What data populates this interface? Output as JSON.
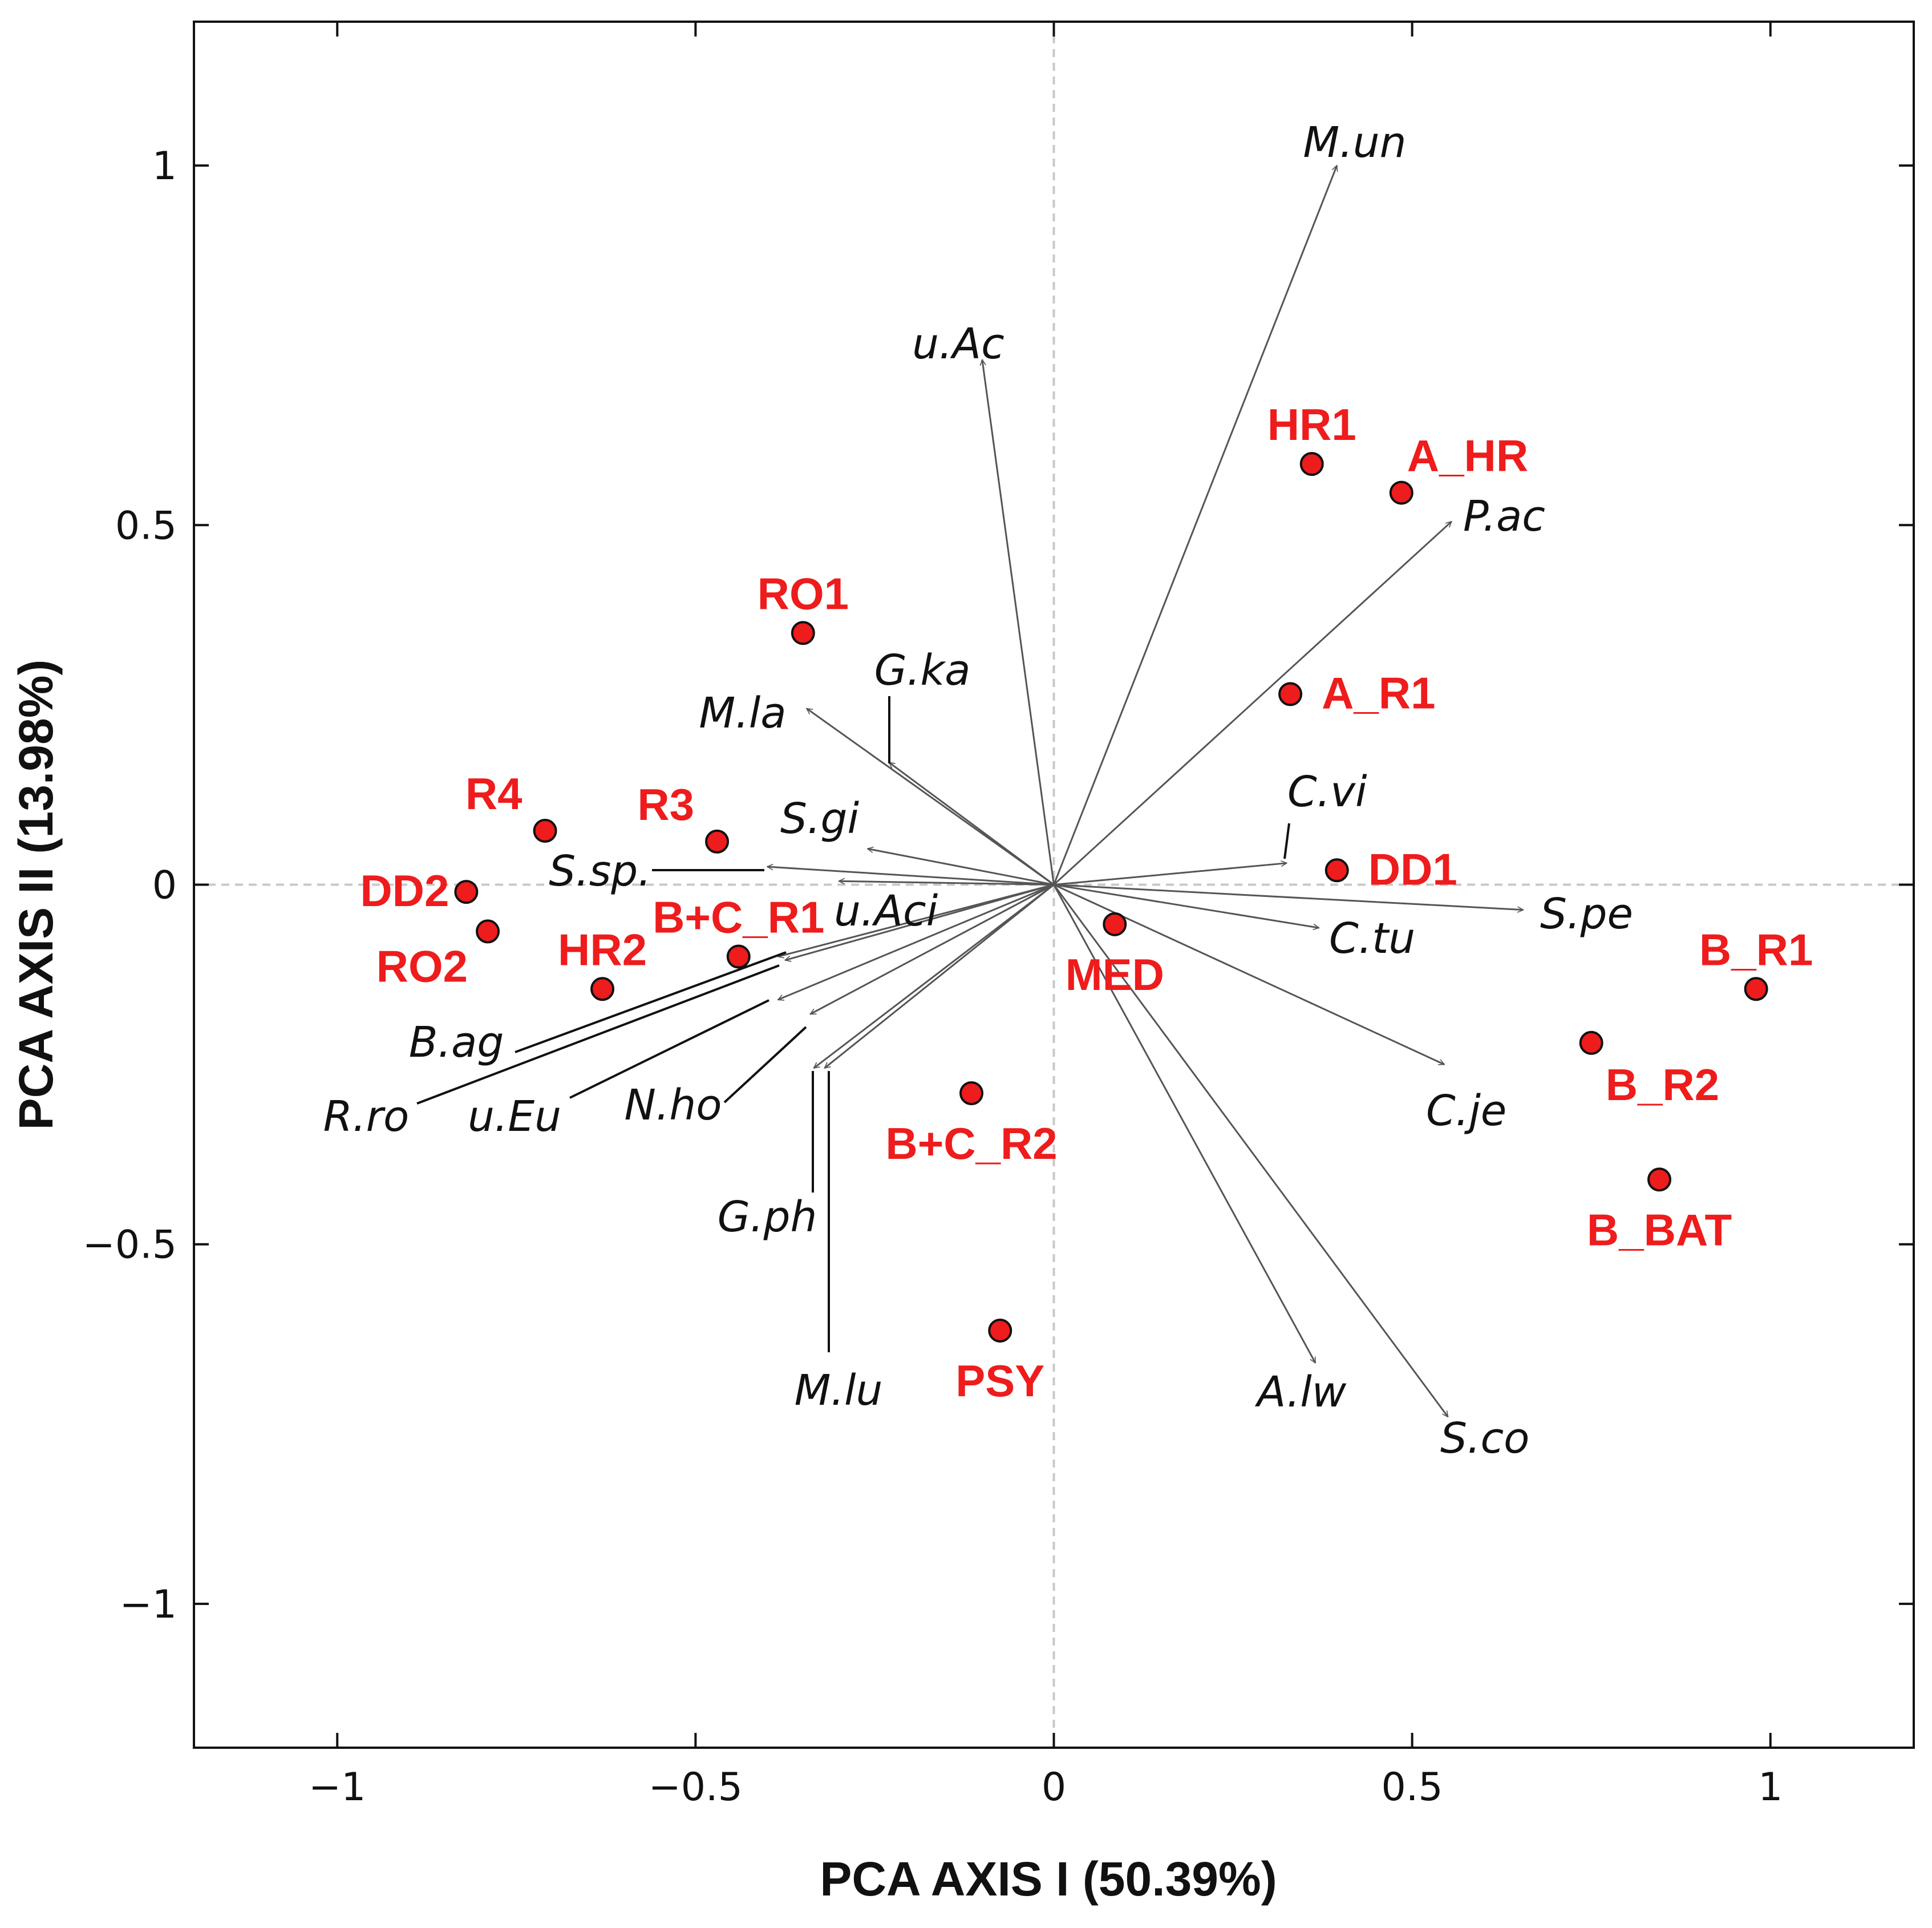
{
  "chart_data": {
    "type": "scatter",
    "subtype": "pca-biplot",
    "title": "",
    "xlabel": "PCA AXIS I (50.39%)",
    "ylabel": "PCA AXIS II (13.98%)",
    "xlim": [
      -1.2,
      1.2
    ],
    "ylim": [
      -1.2,
      1.2
    ],
    "xticks": [
      -1,
      -0.5,
      0,
      0.5,
      1
    ],
    "xtick_labels": [
      "−1",
      "−0.5",
      "0",
      "0.5",
      "1"
    ],
    "yticks": [
      -1,
      -0.5,
      0,
      0.5,
      1
    ],
    "ytick_labels": [
      "−1",
      "−0.5",
      "0",
      "0.5",
      "1"
    ],
    "grid": false,
    "reference_lines": {
      "x": 0,
      "y": 0,
      "style": "dashed"
    },
    "colors": {
      "sample_fill": "#ee1c1c",
      "sample_label": "#ee1c1c",
      "vector": "#555555",
      "leader": "#111111",
      "axis": "#111111",
      "reference": "#c8c8c8"
    },
    "samples": [
      {
        "name": "HR1",
        "x": 0.36,
        "y": 0.585,
        "label_anchor": "n"
      },
      {
        "name": "A_HR",
        "x": 0.485,
        "y": 0.545,
        "label_anchor": "ne"
      },
      {
        "name": "RO1",
        "x": -0.35,
        "y": 0.35,
        "label_anchor": "n"
      },
      {
        "name": "A_R1",
        "x": 0.33,
        "y": 0.265,
        "label_anchor": "e"
      },
      {
        "name": "R4",
        "x": -0.71,
        "y": 0.075,
        "label_anchor": "nw"
      },
      {
        "name": "R3",
        "x": -0.47,
        "y": 0.06,
        "label_anchor": "nw"
      },
      {
        "name": "DD2",
        "x": -0.82,
        "y": -0.01,
        "label_anchor": "w"
      },
      {
        "name": "DD1",
        "x": 0.395,
        "y": 0.02,
        "label_anchor": "e"
      },
      {
        "name": "RO2",
        "x": -0.79,
        "y": -0.065,
        "label_anchor": "sw"
      },
      {
        "name": "HR2",
        "x": -0.63,
        "y": -0.145,
        "label_anchor": "n"
      },
      {
        "name": "B+C_R1",
        "x": -0.44,
        "y": -0.1,
        "label_anchor": "n"
      },
      {
        "name": "MED",
        "x": 0.085,
        "y": -0.055,
        "label_anchor": "s"
      },
      {
        "name": "B_R1",
        "x": 0.98,
        "y": -0.145,
        "label_anchor": "n"
      },
      {
        "name": "B_R2",
        "x": 0.75,
        "y": -0.22,
        "label_anchor": "se"
      },
      {
        "name": "B+C_R2",
        "x": -0.115,
        "y": -0.29,
        "label_anchor": "s"
      },
      {
        "name": "B_BAT",
        "x": 0.845,
        "y": -0.41,
        "label_anchor": "s"
      },
      {
        "name": "PSY",
        "x": -0.075,
        "y": -0.62,
        "label_anchor": "s"
      }
    ],
    "species": [
      {
        "name": "M.un",
        "x": 0.395,
        "y": 1.0
      },
      {
        "name": "u.Ac",
        "x": -0.1,
        "y": 0.73
      },
      {
        "name": "P.ac",
        "x": 0.555,
        "y": 0.505
      },
      {
        "name": "M.la",
        "x": -0.345,
        "y": 0.245
      },
      {
        "name": "G.ka",
        "x": -0.23,
        "y": 0.17
      },
      {
        "name": "S.gi",
        "x": -0.26,
        "y": 0.05
      },
      {
        "name": "C.vi",
        "x": 0.325,
        "y": 0.03
      },
      {
        "name": "S.sp.",
        "x": -0.4,
        "y": 0.025
      },
      {
        "name": "u.Aci",
        "x": -0.3,
        "y": 0.005
      },
      {
        "name": "S.pe",
        "x": 0.655,
        "y": -0.035
      },
      {
        "name": "C.tu",
        "x": 0.37,
        "y": -0.06
      },
      {
        "name": "B.ag",
        "x": -0.385,
        "y": -0.1
      },
      {
        "name": "R.ro",
        "x": -0.375,
        "y": -0.105
      },
      {
        "name": "u.Eu",
        "x": -0.385,
        "y": -0.16
      },
      {
        "name": "N.ho",
        "x": -0.34,
        "y": -0.18
      },
      {
        "name": "C.je",
        "x": 0.545,
        "y": -0.25
      },
      {
        "name": "G.ph",
        "x": -0.335,
        "y": -0.255
      },
      {
        "name": "M.lu",
        "x": -0.32,
        "y": -0.255
      },
      {
        "name": "A.lw",
        "x": 0.365,
        "y": -0.665
      },
      {
        "name": "S.co",
        "x": 0.55,
        "y": -0.74
      }
    ]
  }
}
